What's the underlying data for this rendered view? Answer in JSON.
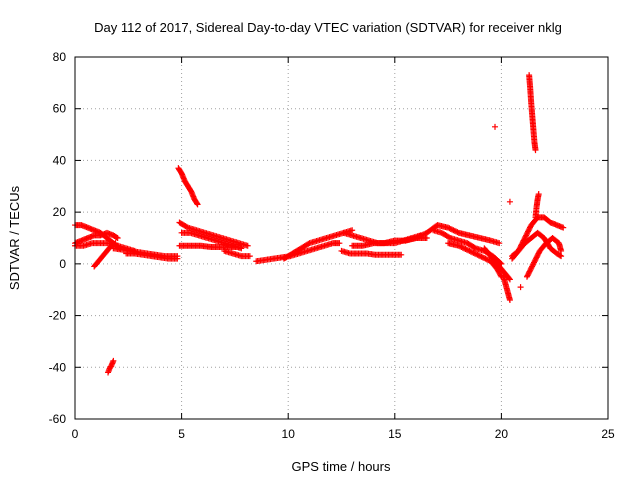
{
  "chart_data": {
    "type": "scatter",
    "title": "Day 112 of 2017, Sidereal Day-to-day VTEC variation (SDTVAR) for receiver nklg",
    "xlabel": "GPS time / hours",
    "ylabel": "SDTVAR / TECUs",
    "xlim": [
      0,
      25
    ],
    "ylim": [
      -60,
      80
    ],
    "xticks": [
      0,
      5,
      10,
      15,
      20,
      25
    ],
    "yticks": [
      -60,
      -40,
      -20,
      0,
      20,
      40,
      60,
      80
    ],
    "grid": true,
    "marker": "+",
    "color": "#ff0000",
    "segments": [
      {
        "name": "arc-1",
        "x": [
          0.0,
          0.3,
          0.6,
          0.9,
          1.2,
          1.5,
          1.8,
          2.1
        ],
        "y": [
          15,
          15,
          14,
          13,
          12,
          10,
          8,
          6
        ]
      },
      {
        "name": "arc-2",
        "x": [
          0.0,
          0.3,
          0.6,
          0.9,
          1.2,
          1.5,
          1.8,
          2.0
        ],
        "y": [
          8,
          9,
          10,
          11,
          11,
          12,
          11,
          10
        ]
      },
      {
        "name": "arc-3",
        "x": [
          0.0,
          0.4,
          0.8,
          1.2,
          1.6,
          2.0,
          2.4,
          2.8
        ],
        "y": [
          7,
          7,
          8,
          8,
          8,
          7,
          6,
          5
        ]
      },
      {
        "name": "arc-4",
        "x": [
          0.9,
          1.1,
          1.3,
          1.5,
          1.7,
          1.9
        ],
        "y": [
          -1,
          1,
          3,
          5,
          7,
          8
        ]
      },
      {
        "name": "arc-5",
        "x": [
          1.55,
          1.6,
          1.65,
          1.7,
          1.75,
          1.8
        ],
        "y": [
          -42,
          -41,
          -40,
          -39.5,
          -38.5,
          -37.5
        ]
      },
      {
        "name": "arc-6",
        "x": [
          1.8,
          2.2,
          2.6,
          3.0,
          3.4,
          3.8,
          4.2,
          4.6,
          4.8
        ],
        "y": [
          6,
          5.5,
          5,
          4.5,
          4,
          3.5,
          3,
          3,
          3
        ]
      },
      {
        "name": "arc-7",
        "x": [
          2.4,
          2.8,
          3.2,
          3.6,
          4.0,
          4.4,
          4.8
        ],
        "y": [
          4,
          4,
          3.5,
          3,
          2.5,
          2,
          2
        ]
      },
      {
        "name": "arc-8",
        "x": [
          4.85,
          5.0,
          5.15,
          5.3,
          5.45,
          5.6,
          5.75
        ],
        "y": [
          37,
          35,
          32,
          30,
          28,
          25,
          23
        ]
      },
      {
        "name": "arc-9",
        "x": [
          4.9,
          5.3,
          5.7,
          6.1,
          6.5,
          6.9,
          7.3,
          7.7,
          8.1
        ],
        "y": [
          16,
          14,
          13,
          12,
          11,
          10,
          9,
          8,
          7
        ]
      },
      {
        "name": "arc-10",
        "x": [
          5.0,
          5.4,
          5.8,
          6.2,
          6.6,
          7.0,
          7.4,
          7.8
        ],
        "y": [
          12,
          12,
          11,
          10,
          9,
          8,
          7,
          6
        ]
      },
      {
        "name": "arc-11",
        "x": [
          4.9,
          5.4,
          5.9,
          6.4,
          6.9,
          7.4,
          7.8
        ],
        "y": [
          7,
          7,
          7,
          6.5,
          6.5,
          6.5,
          6.5
        ]
      },
      {
        "name": "arc-12",
        "x": [
          7.0,
          7.4,
          7.8,
          8.2
        ],
        "y": [
          5,
          4,
          3,
          3
        ]
      },
      {
        "name": "arc-13",
        "x": [
          8.5,
          8.9,
          9.3,
          9.7,
          10.1,
          10.5,
          10.9,
          11.3,
          11.7,
          12.1,
          12.4
        ],
        "y": [
          1,
          1.5,
          2,
          2.5,
          3,
          4,
          5,
          6,
          7,
          8,
          8
        ]
      },
      {
        "name": "arc-14",
        "x": [
          9.8,
          10.2,
          10.6,
          11.0,
          11.4,
          11.8,
          12.2,
          12.6,
          13.0
        ],
        "y": [
          2,
          4,
          6,
          8,
          9,
          10,
          11,
          12,
          13
        ]
      },
      {
        "name": "arc-15",
        "x": [
          12.5,
          12.9,
          13.3,
          13.7,
          14.1,
          14.5,
          14.9,
          15.3
        ],
        "y": [
          5,
          4,
          4,
          4,
          3.5,
          3.5,
          3.5,
          3.5
        ]
      },
      {
        "name": "arc-16",
        "x": [
          12.6,
          13.0,
          13.4,
          13.8,
          14.2,
          14.6,
          15.0,
          15.4,
          15.8,
          16.2
        ],
        "y": [
          12,
          11,
          10,
          9,
          8,
          8,
          8,
          9,
          10,
          11
        ]
      },
      {
        "name": "arc-17",
        "x": [
          13.0,
          13.5,
          14.0,
          14.5,
          15.0,
          15.5,
          16.0,
          16.5
        ],
        "y": [
          7,
          7,
          8,
          8,
          9,
          9,
          10,
          10
        ]
      },
      {
        "name": "arc-18",
        "x": [
          15.5,
          16.0,
          16.5,
          17.0,
          17.5,
          18.0,
          18.5,
          19.0,
          19.5,
          19.9
        ],
        "y": [
          9,
          10,
          12,
          15,
          14,
          12,
          11,
          10,
          9,
          8
        ]
      },
      {
        "name": "arc-19",
        "x": [
          16.8,
          17.2,
          17.6,
          18.0,
          18.4,
          18.8,
          19.2,
          19.6,
          20.0
        ],
        "y": [
          13,
          12,
          10,
          9,
          8,
          6,
          5,
          3,
          0
        ]
      },
      {
        "name": "arc-20",
        "x": [
          17.5,
          18.0,
          18.5,
          19.0,
          19.5,
          19.8,
          20.0
        ],
        "y": [
          8,
          7,
          5,
          3,
          1,
          -2,
          -5
        ]
      },
      {
        "name": "arc-21",
        "x": [
          19.2,
          19.5,
          19.8,
          20.1,
          20.4
        ],
        "y": [
          6,
          3,
          0,
          -3,
          -6
        ]
      },
      {
        "name": "arc-22",
        "x": [
          19.7
        ],
        "y": [
          53
        ]
      },
      {
        "name": "arc-23",
        "x": [
          20.1,
          20.2,
          20.3,
          20.4
        ],
        "y": [
          -5,
          -8,
          -11,
          -14
        ]
      },
      {
        "name": "arc-24",
        "x": [
          20.5,
          20.8,
          21.1,
          21.4,
          21.7,
          22.0,
          22.3,
          22.6,
          22.9
        ],
        "y": [
          2,
          5,
          10,
          15,
          18,
          18,
          16,
          15,
          14
        ]
      },
      {
        "name": "arc-25",
        "x": [
          20.5,
          20.8,
          21.1,
          21.4,
          21.7,
          22.0,
          22.3,
          22.6,
          22.8
        ],
        "y": [
          3,
          5,
          8,
          10,
          12,
          10,
          6,
          4,
          3
        ]
      },
      {
        "name": "arc-26",
        "x": [
          21.2,
          21.5,
          21.8,
          22.1,
          22.4,
          22.7,
          22.8
        ],
        "y": [
          -5,
          0,
          5,
          8,
          10,
          8,
          5
        ]
      },
      {
        "name": "arc-27",
        "x": [
          21.3,
          21.35,
          21.4,
          21.45,
          21.5,
          21.55,
          21.6
        ],
        "y": [
          73,
          68,
          62,
          57,
          52,
          47,
          44
        ]
      },
      {
        "name": "arc-28",
        "x": [
          21.6,
          21.65,
          21.7,
          21.75
        ],
        "y": [
          18,
          22,
          25,
          27
        ]
      },
      {
        "name": "arc-29",
        "x": [
          20.4
        ],
        "y": [
          24
        ]
      },
      {
        "name": "arc-30",
        "x": [
          20.9
        ],
        "y": [
          -9
        ]
      }
    ]
  }
}
